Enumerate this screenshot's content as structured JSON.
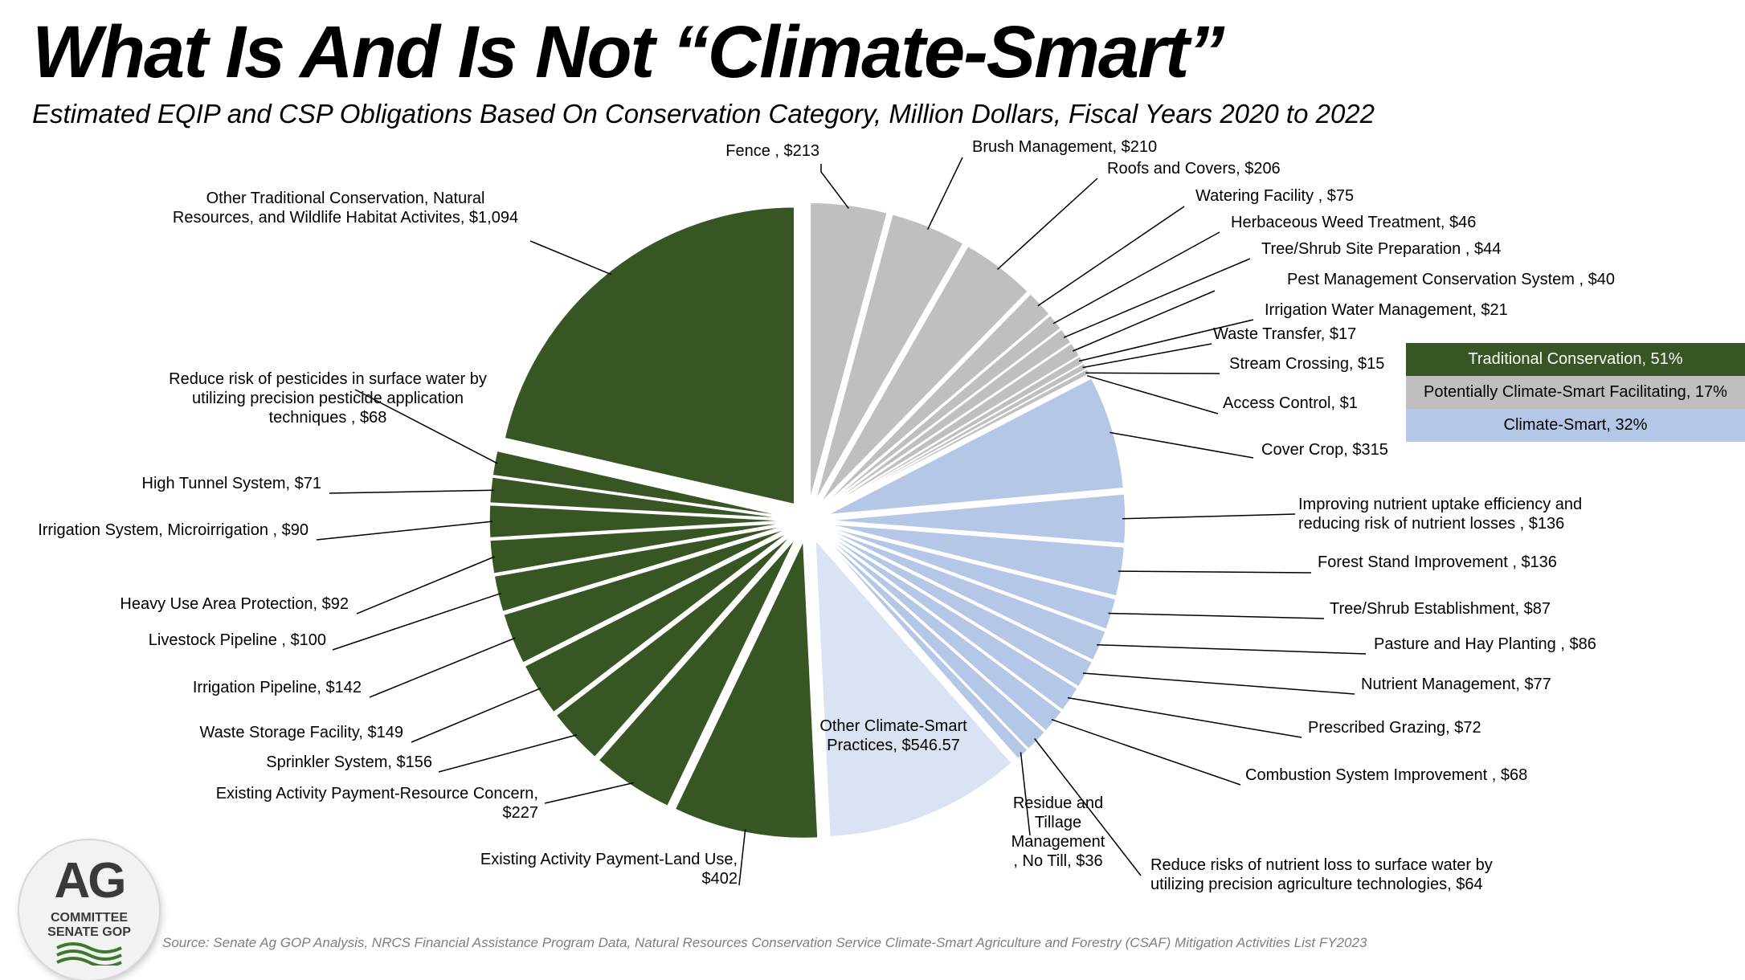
{
  "title": "What Is And Is Not “Climate-Smart”",
  "subtitle": "Estimated EQIP and CSP Obligations Based On Conservation Category, Million Dollars, Fiscal Years 2020 to 2022",
  "source": "Source: Senate Ag GOP Analysis, NRCS Financial Assistance Program Data, Natural Resources Conservation Service Climate-Smart Agriculture and Forestry (CSAF) Mitigation Activities List FY2023",
  "logo": {
    "main": "AG",
    "line1": "COMMITTEE",
    "line2": "SENATE GOP"
  },
  "colors": {
    "Traditional Conservation": "#375623",
    "Potentially Climate-Smart Facilitating": "#bfbfbf",
    "Climate-Smart": "#b4c7e7",
    "Other Climate-Smart": "#dae3f3"
  },
  "legend": [
    {
      "label": "Traditional Conservation, 51%",
      "category": "Traditional Conservation"
    },
    {
      "label": "Potentially Climate-Smart Facilitating, 17%",
      "category": "Potentially Climate-Smart Facilitating"
    },
    {
      "label": "Climate-Smart, 32%",
      "category": "Climate-Smart"
    }
  ],
  "chart_data": {
    "type": "pie",
    "start_angle_deg": 0,
    "direction": "clockwise",
    "exploded": true,
    "legend_position": "right",
    "units": "Million Dollars",
    "slices": [
      {
        "label": [
          "Fence , $213"
        ],
        "value": 213,
        "category": "Potentially Climate-Smart Facilitating"
      },
      {
        "label": [
          "Brush Management, $210"
        ],
        "value": 210,
        "category": "Potentially Climate-Smart Facilitating"
      },
      {
        "label": [
          "Roofs and Covers, $206"
        ],
        "value": 206,
        "category": "Potentially Climate-Smart Facilitating"
      },
      {
        "label": [
          "Watering Facility , $75"
        ],
        "value": 75,
        "category": "Potentially Climate-Smart Facilitating"
      },
      {
        "label": [
          "Herbaceous Weed Treatment, $46"
        ],
        "value": 46,
        "category": "Potentially Climate-Smart Facilitating"
      },
      {
        "label": [
          "Tree/Shrub Site Preparation , $44"
        ],
        "value": 44,
        "category": "Potentially Climate-Smart Facilitating"
      },
      {
        "label": [
          "Pest Management Conservation System , $40"
        ],
        "value": 40,
        "category": "Potentially Climate-Smart Facilitating"
      },
      {
        "label": [
          "Irrigation Water Management, $21"
        ],
        "value": 21,
        "category": "Potentially Climate-Smart Facilitating"
      },
      {
        "label": [
          "Waste Transfer, $17"
        ],
        "value": 17,
        "category": "Potentially Climate-Smart Facilitating"
      },
      {
        "label": [
          "Stream Crossing, $15"
        ],
        "value": 15,
        "category": "Potentially Climate-Smart Facilitating"
      },
      {
        "label": [
          "Access Control, $1"
        ],
        "value": 1,
        "category": "Potentially Climate-Smart Facilitating"
      },
      {
        "label": [
          "Cover Crop, $315"
        ],
        "value": 315,
        "category": "Climate-Smart"
      },
      {
        "label": [
          "Improving nutrient uptake efficiency and",
          "reducing risk of nutrient losses , $136"
        ],
        "value": 136,
        "category": "Climate-Smart"
      },
      {
        "label": [
          "Forest Stand Improvement , $136"
        ],
        "value": 136,
        "category": "Climate-Smart"
      },
      {
        "label": [
          "Tree/Shrub Establishment, $87"
        ],
        "value": 87,
        "category": "Climate-Smart"
      },
      {
        "label": [
          "Pasture and Hay Planting , $86"
        ],
        "value": 86,
        "category": "Climate-Smart"
      },
      {
        "label": [
          "Nutrient Management, $77"
        ],
        "value": 77,
        "category": "Climate-Smart"
      },
      {
        "label": [
          "Prescribed Grazing, $72"
        ],
        "value": 72,
        "category": "Climate-Smart"
      },
      {
        "label": [
          "Combustion System Improvement , $68"
        ],
        "value": 68,
        "category": "Climate-Smart"
      },
      {
        "label": [
          "Reduce risks of nutrient loss to surface water by",
          "utilizing precision agriculture technologies, $64"
        ],
        "value": 64,
        "category": "Climate-Smart"
      },
      {
        "label": [
          "Residue and",
          "Tillage",
          "Management",
          ", No Till, $36"
        ],
        "value": 36,
        "category": "Climate-Smart"
      },
      {
        "label": [
          "Other Climate-Smart",
          "Practices, $546.57"
        ],
        "value": 546.57,
        "category": "Other Climate-Smart"
      },
      {
        "label": [
          "Existing Activity Payment-Land Use,",
          "$402"
        ],
        "value": 402,
        "category": "Traditional Conservation"
      },
      {
        "label": [
          "Existing Activity Payment-Resource Concern,",
          "$227"
        ],
        "value": 227,
        "category": "Traditional Conservation"
      },
      {
        "label": [
          "Sprinkler System, $156"
        ],
        "value": 156,
        "category": "Traditional Conservation"
      },
      {
        "label": [
          "Waste Storage Facility, $149"
        ],
        "value": 149,
        "category": "Traditional Conservation"
      },
      {
        "label": [
          "Irrigation Pipeline, $142"
        ],
        "value": 142,
        "category": "Traditional Conservation"
      },
      {
        "label": [
          "Livestock Pipeline , $100"
        ],
        "value": 100,
        "category": "Traditional Conservation"
      },
      {
        "label": [
          "Heavy Use Area Protection, $92"
        ],
        "value": 92,
        "category": "Traditional Conservation"
      },
      {
        "label": [
          "Irrigation System, Microirrigation , $90"
        ],
        "value": 90,
        "category": "Traditional Conservation"
      },
      {
        "label": [
          "High Tunnel System, $71"
        ],
        "value": 71,
        "category": "Traditional Conservation"
      },
      {
        "label": [
          "Reduce risk of pesticides in surface water by",
          "utilizing precision pesticide application",
          "techniques , $68"
        ],
        "value": 68,
        "category": "Traditional Conservation"
      },
      {
        "label": [
          "Other Traditional Conservation, Natural",
          "Resources, and Wildlife Habitat Activites, $1,094"
        ],
        "value": 1094,
        "category": "Traditional Conservation"
      }
    ]
  }
}
